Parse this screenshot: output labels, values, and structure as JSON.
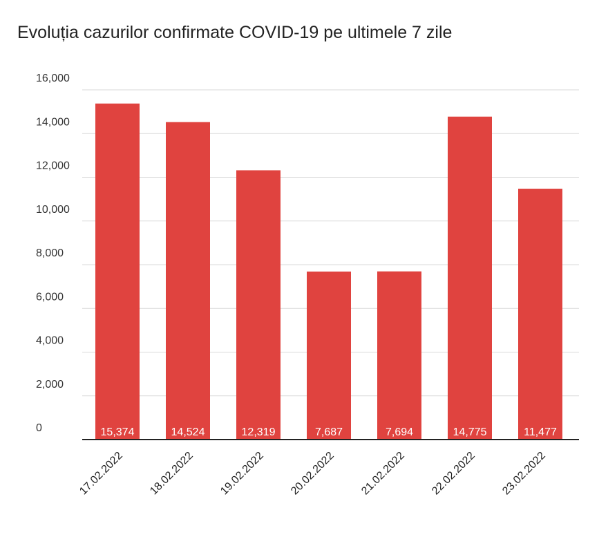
{
  "chart_data": {
    "type": "bar",
    "title": "Evoluția cazurilor confirmate COVID-19 pe ultimele 7 zile",
    "categories": [
      "17.02.2022",
      "18.02.2022",
      "19.02.2022",
      "20.02.2022",
      "21.02.2022",
      "22.02.2022",
      "23.02.2022"
    ],
    "values": [
      15374,
      14524,
      12319,
      7687,
      7694,
      14775,
      11477
    ],
    "value_labels": [
      "15,374",
      "14,524",
      "12,319",
      "7,687",
      "7,694",
      "14,775",
      "11,477"
    ],
    "color": "#e0433f",
    "ylim": [
      0,
      16000
    ],
    "yticks": [
      0,
      {
        "value": 2000,
        "label": "2,000"
      },
      {
        "value": 4000,
        "label": "4,000"
      },
      {
        "value": 6000,
        "label": "6,000"
      },
      {
        "value": 8000,
        "label": "8,000"
      },
      {
        "value": 10000,
        "label": "10,000"
      },
      {
        "value": 12000,
        "label": "12,000"
      },
      {
        "value": 14000,
        "label": "14,000"
      },
      {
        "value": 16000,
        "label": "16,000"
      }
    ],
    "grid": true
  }
}
